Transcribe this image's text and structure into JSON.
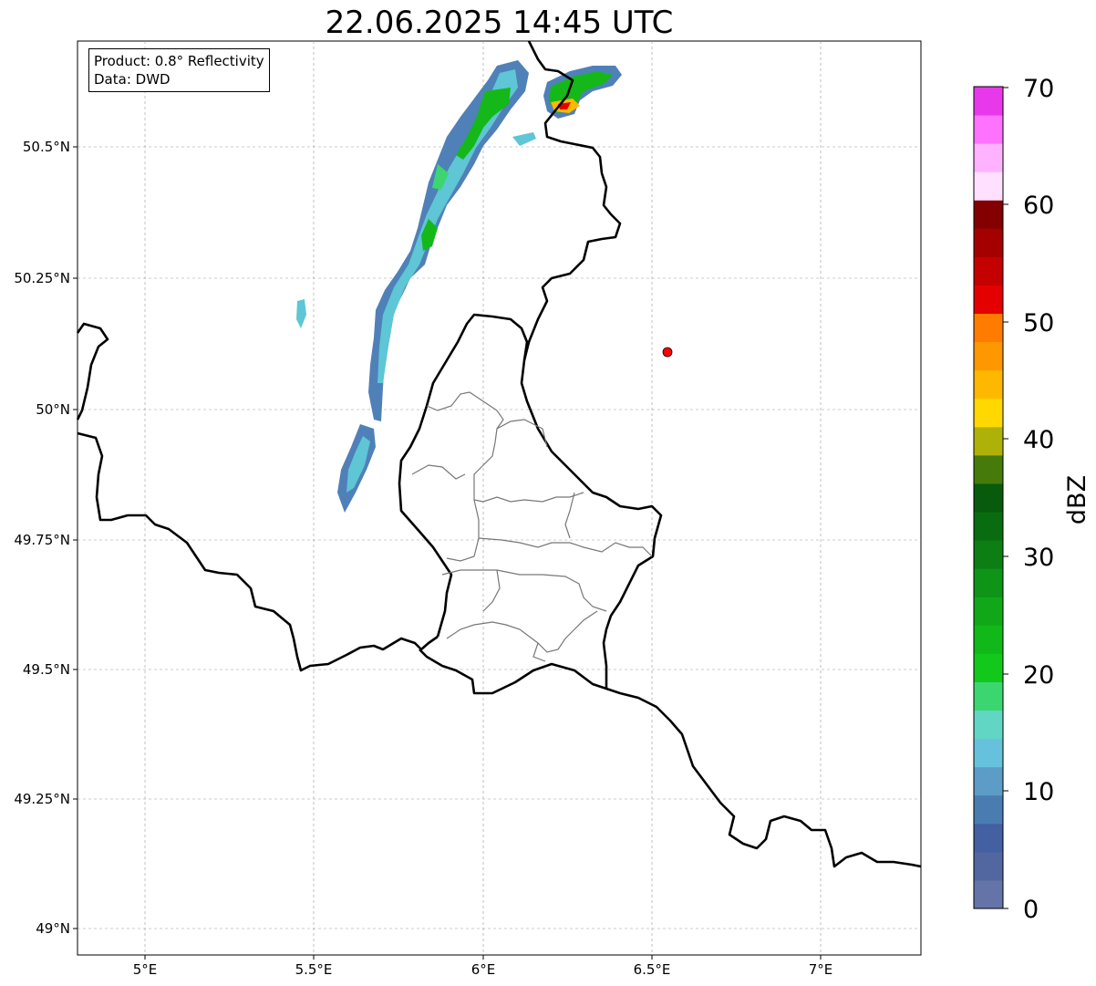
{
  "title": "22.06.2025 14:45 UTC",
  "info_box": {
    "product": "Product: 0.8° Reflectivity",
    "source": "Data: DWD"
  },
  "axes": {
    "lon_ticks": [
      "5°E",
      "5.5°E",
      "6°E",
      "6.5°E",
      "7°E"
    ],
    "lat_ticks": [
      "49°N",
      "49.25°N",
      "49.5°N",
      "49.75°N",
      "50°N",
      "50.25°N",
      "50.5°N"
    ],
    "gridlines": true
  },
  "colorbar": {
    "label": "dBZ",
    "ticks": [
      "0",
      "10",
      "20",
      "30",
      "40",
      "50",
      "60",
      "70"
    ],
    "range": [
      0,
      70
    ],
    "colors": [
      "#6474a8",
      "#5266a0",
      "#4260a2",
      "#4a7cb2",
      "#5c9cc6",
      "#66c2dc",
      "#62d6c4",
      "#3cd670",
      "#12c81a",
      "#10b81a",
      "#10a818",
      "#0e9416",
      "#0c7e14",
      "#0a6c10",
      "#085a0c",
      "#467a0a",
      "#aeb208",
      "#ffd800",
      "#ffb800",
      "#ff9800",
      "#ff7c00",
      "#e40000",
      "#c40000",
      "#a40000",
      "#840000",
      "#ffe0ff",
      "#ffb2ff",
      "#ff72ff",
      "#e838ec"
    ]
  },
  "marker": {
    "color": "#ff0000"
  }
}
